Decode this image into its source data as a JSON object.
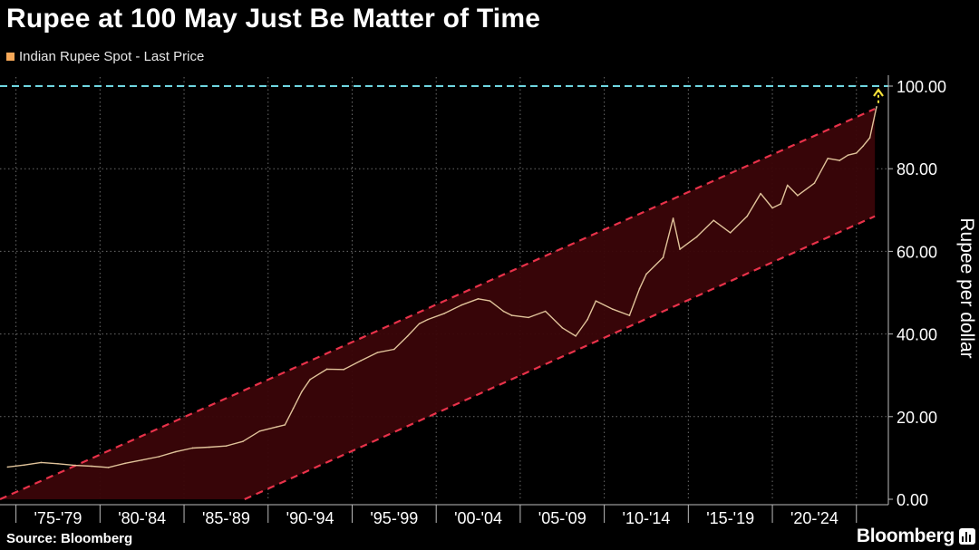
{
  "title": "Rupee at 100 May Just Be Matter of Time",
  "legend_label": "Indian Rupee Spot - Last Price",
  "source": "Source: Bloomberg",
  "brand": "Bloomberg",
  "colors": {
    "series": "#f6a858",
    "line": "#e0c39a",
    "channel": "#e8324a",
    "channel_fill": "#3a0508",
    "target": "#6fd6e0",
    "arrow": "#f5e13a",
    "grid": "#6b6b6b"
  },
  "chart_data": {
    "type": "line",
    "title": "Rupee at 100 May Just Be Matter of Time",
    "ylabel": "Rupee per dollar",
    "ylim": [
      0,
      100
    ],
    "yticks": [
      "0.00",
      "20.00",
      "40.00",
      "60.00",
      "80.00",
      "100.00"
    ],
    "categories": [
      "'75-'79",
      "'80-'84",
      "'85-'89",
      "'90-'94",
      "'95-'99",
      "'00-'04",
      "'05-'09",
      "'10-'14",
      "'15-'19",
      "'20-'24"
    ],
    "grid": true,
    "series": [
      {
        "name": "Indian Rupee Spot - Last Price",
        "x": [
          1974.0,
          1975.0,
          1976.0,
          1977.0,
          1978.0,
          1979.0,
          1980.0,
          1981.0,
          1982.0,
          1983.0,
          1984.0,
          1985.0,
          1986.0,
          1987.0,
          1988.0,
          1989.0,
          1990.0,
          1990.5,
          1991.0,
          1991.5,
          1992.0,
          1993.0,
          1994.0,
          1995.0,
          1996.0,
          1997.0,
          1997.8,
          1998.5,
          1999.0,
          2000.0,
          2001.0,
          2002.0,
          2002.7,
          2003.5,
          2004.0,
          2005.0,
          2006.0,
          2007.0,
          2007.8,
          2008.5,
          2009.0,
          2010.0,
          2011.0,
          2011.6,
          2012.0,
          2013.0,
          2013.6,
          2014.0,
          2015.0,
          2016.0,
          2017.0,
          2018.0,
          2018.8,
          2019.5,
          2020.0,
          2020.4,
          2021.0,
          2022.0,
          2022.8,
          2023.5,
          2024.0,
          2024.5,
          2024.9,
          2025.3,
          2025.7
        ],
        "values": [
          7.8,
          8.3,
          8.9,
          8.6,
          8.2,
          8.0,
          7.7,
          8.7,
          9.5,
          10.3,
          11.5,
          12.4,
          12.6,
          12.9,
          14.0,
          16.5,
          17.5,
          18.0,
          22.0,
          26.0,
          29.0,
          31.5,
          31.4,
          33.5,
          35.5,
          36.3,
          39.5,
          42.5,
          43.5,
          45.0,
          47.0,
          48.5,
          48.0,
          45.5,
          44.5,
          44.0,
          45.5,
          41.5,
          39.5,
          43.5,
          48.0,
          46.0,
          44.5,
          51.0,
          54.5,
          58.5,
          68.0,
          60.5,
          63.5,
          67.5,
          64.5,
          68.5,
          74.0,
          70.5,
          71.5,
          76.0,
          73.5,
          76.5,
          82.5,
          82.0,
          83.3,
          83.8,
          85.5,
          87.5,
          95.0
        ]
      }
    ],
    "target_level": 100,
    "channel": {
      "upper": [
        [
          1973.55,
          0
        ],
        [
          2025.6,
          94.5
        ]
      ],
      "lower": [
        [
          1988.1,
          0
        ],
        [
          2025.6,
          68.5
        ]
      ]
    }
  }
}
